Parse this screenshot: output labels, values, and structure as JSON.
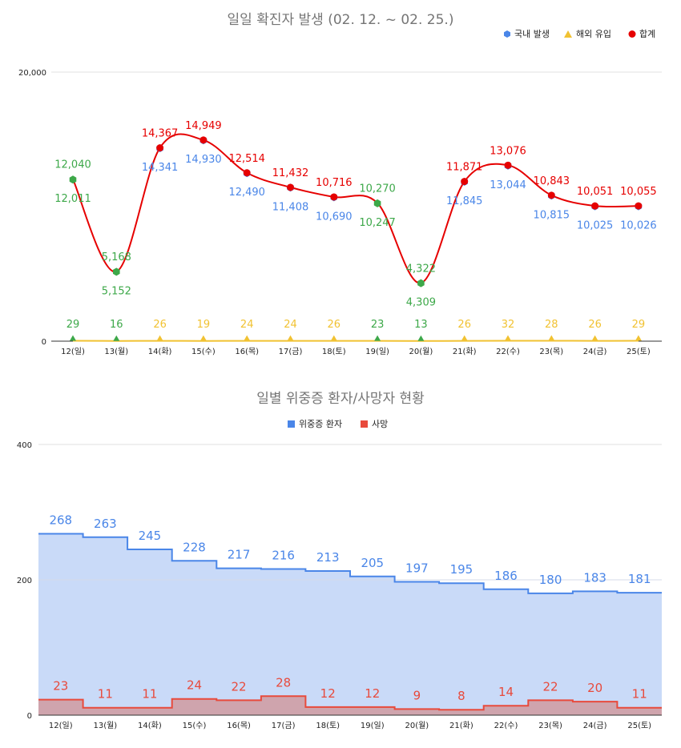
{
  "chart_data": [
    {
      "type": "line",
      "title": "일일 확진자 발생 (02. 12. ~ 02. 25.)",
      "categories": [
        "12(일)",
        "13(월)",
        "14(화)",
        "15(수)",
        "16(목)",
        "17(금)",
        "18(토)",
        "19(일)",
        "20(월)",
        "21(화)",
        "22(수)",
        "23(목)",
        "24(금)",
        "25(토)"
      ],
      "ylim": [
        0,
        20000
      ],
      "yticks": [
        "0",
        "20,000"
      ],
      "legend_position": "top-right",
      "series": [
        {
          "name": "국내 발생",
          "color": "#4a86e8",
          "marker": "hexagon",
          "values": [
            12011,
            5152,
            14341,
            14930,
            12490,
            11408,
            10690,
            10247,
            4309,
            11845,
            13044,
            10815,
            10025,
            10026
          ],
          "labels": [
            "12,011",
            "5,152",
            "14,341",
            "14,930",
            "12,490",
            "11,408",
            "10,690",
            "10,247",
            "4,309",
            "11,845",
            "13,044",
            "10,815",
            "10,025",
            "10,026"
          ]
        },
        {
          "name": "해외 유입",
          "color": "#f1c232",
          "marker": "triangle",
          "values": [
            29,
            16,
            26,
            19,
            24,
            24,
            26,
            23,
            13,
            26,
            32,
            28,
            26,
            29
          ],
          "labels": [
            "29",
            "16",
            "26",
            "19",
            "24",
            "24",
            "26",
            "23",
            "13",
            "26",
            "32",
            "28",
            "26",
            "29"
          ]
        },
        {
          "name": "합계",
          "color": "#e60000",
          "marker": "circle",
          "values": [
            12040,
            5168,
            14367,
            14949,
            12514,
            11432,
            10716,
            10270,
            4322,
            11871,
            13076,
            10843,
            10051,
            10055
          ],
          "labels": [
            "12,040",
            "5,168",
            "14,367",
            "14,949",
            "12,514",
            "11,432",
            "10,716",
            "10,270",
            "4,322",
            "11,871",
            "13,076",
            "10,843",
            "10,051",
            "10,055"
          ]
        }
      ],
      "weekend_highlight_color": "#3da849",
      "weekend_indices": [
        0,
        1,
        7,
        8
      ]
    },
    {
      "type": "area",
      "title": "일별 위중증 환자/사망자 현황",
      "categories": [
        "12(일)",
        "13(월)",
        "14(화)",
        "15(수)",
        "16(목)",
        "17(금)",
        "18(토)",
        "19(일)",
        "20(월)",
        "21(화)",
        "22(수)",
        "23(목)",
        "24(금)",
        "25(토)"
      ],
      "ylim": [
        0,
        400
      ],
      "yticks": [
        "0",
        "200",
        "400"
      ],
      "legend_position": "top",
      "series": [
        {
          "name": "위중증 환자",
          "color": "#4a86e8",
          "fill": "#c9daf8",
          "values": [
            268,
            263,
            245,
            228,
            217,
            216,
            213,
            205,
            197,
            195,
            186,
            180,
            183,
            181
          ],
          "labels": [
            "268",
            "263",
            "245",
            "228",
            "217",
            "216",
            "213",
            "205",
            "197",
            "195",
            "186",
            "180",
            "183",
            "181"
          ]
        },
        {
          "name": "사망",
          "color": "#e84a3c",
          "fill": "#cfa4ad",
          "values": [
            23,
            11,
            11,
            24,
            22,
            28,
            12,
            12,
            9,
            8,
            14,
            22,
            20,
            11
          ],
          "labels": [
            "23",
            "11",
            "11",
            "24",
            "22",
            "28",
            "12",
            "12",
            "9",
            "8",
            "14",
            "22",
            "20",
            "11"
          ]
        }
      ]
    }
  ]
}
